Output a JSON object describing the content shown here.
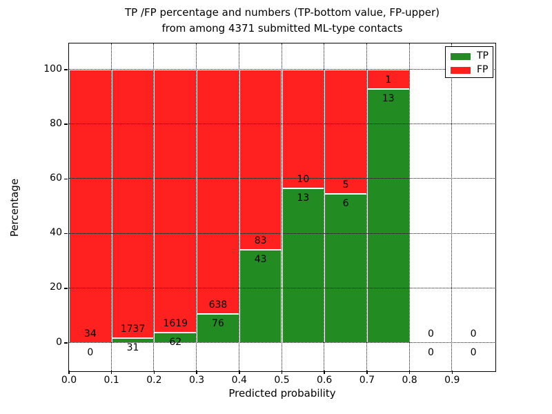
{
  "chart_data": {
    "type": "bar",
    "stacked": true,
    "title_lines": [
      "TP /FP percentage and numbers (TP-bottom value, FP-upper)",
      "from among 4371 submitted ML-type contacts"
    ],
    "xlabel": "Predicted probability",
    "ylabel": "Percentage",
    "total_submitted": 4371,
    "xlim": [
      0.0,
      1.0
    ],
    "ylim": [
      -10,
      110
    ],
    "grid": "dotted",
    "bin_width": 0.1,
    "legend_position": "upper right",
    "xticks": [
      "0.0",
      "0.1",
      "0.2",
      "0.3",
      "0.4",
      "0.5",
      "0.6",
      "0.7",
      "0.8",
      "0.9"
    ],
    "yticks": [
      0,
      20,
      40,
      60,
      80,
      100
    ],
    "legend": [
      {
        "label": "TP",
        "color": "#228b22"
      },
      {
        "label": "FP",
        "color": "#ff2020"
      }
    ],
    "series": [
      {
        "name": "TP",
        "position": "bottom",
        "color": "#228b22",
        "values": [
          0,
          31,
          62,
          76,
          43,
          13,
          6,
          13,
          0,
          0
        ]
      },
      {
        "name": "FP",
        "position": "upper",
        "color": "#ff2020",
        "values": [
          34,
          1737,
          1619,
          638,
          83,
          10,
          5,
          1,
          0,
          0
        ]
      }
    ],
    "bins": [
      {
        "range": "0.0-0.1",
        "tp": 0,
        "fp": 34
      },
      {
        "range": "0.1-0.2",
        "tp": 31,
        "fp": 1737
      },
      {
        "range": "0.2-0.3",
        "tp": 62,
        "fp": 1619
      },
      {
        "range": "0.3-0.4",
        "tp": 76,
        "fp": 638
      },
      {
        "range": "0.4-0.5",
        "tp": 43,
        "fp": 83
      },
      {
        "range": "0.5-0.6",
        "tp": 13,
        "fp": 10
      },
      {
        "range": "0.6-0.7",
        "tp": 6,
        "fp": 5
      },
      {
        "range": "0.7-0.8",
        "tp": 13,
        "fp": 1
      },
      {
        "range": "0.8-0.9",
        "tp": 0,
        "fp": 0
      },
      {
        "range": "0.9-1.0",
        "tp": 0,
        "fp": 0
      }
    ]
  }
}
